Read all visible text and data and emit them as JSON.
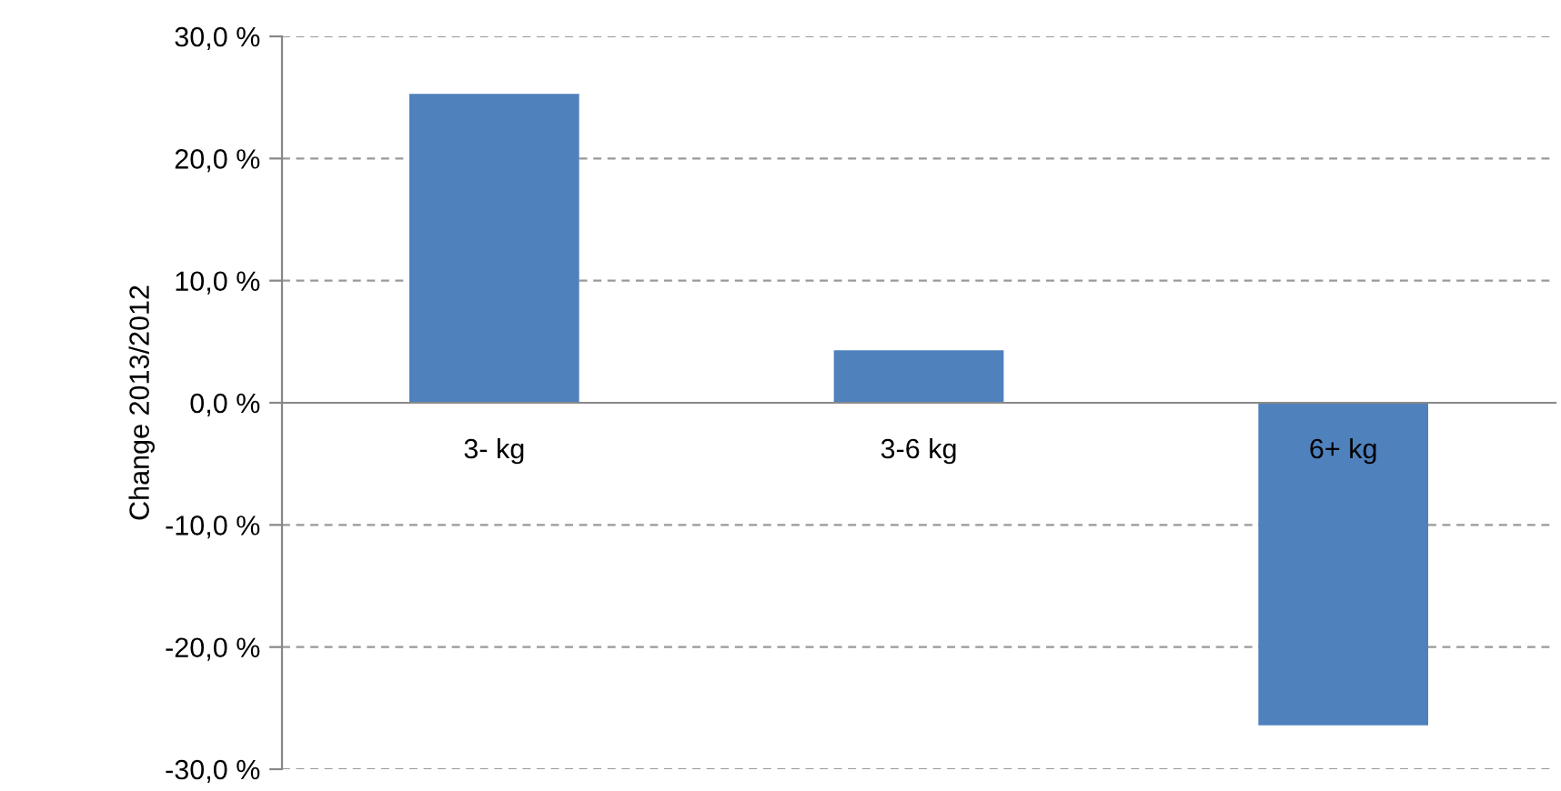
{
  "chart_data": {
    "type": "bar",
    "ylabel": "Change 2013/2012",
    "categories": [
      "3- kg",
      "3-6 kg",
      "6+ kg"
    ],
    "values": [
      25.3,
      4.3,
      -26.4
    ],
    "color": "#4f81bd",
    "ylim": [
      -30,
      30
    ],
    "yticks": [
      {
        "value": -30,
        "label": "-30,0 %"
      },
      {
        "value": -20,
        "label": "-20,0 %"
      },
      {
        "value": -10,
        "label": "-10,0 %"
      },
      {
        "value": 0,
        "label": "0,0 %"
      },
      {
        "value": 10,
        "label": "10,0 %"
      },
      {
        "value": 20,
        "label": "20,0 %"
      },
      {
        "value": 30,
        "label": "30,0 %"
      }
    ],
    "grid": "y",
    "line_style": "dashed",
    "legend": false
  }
}
